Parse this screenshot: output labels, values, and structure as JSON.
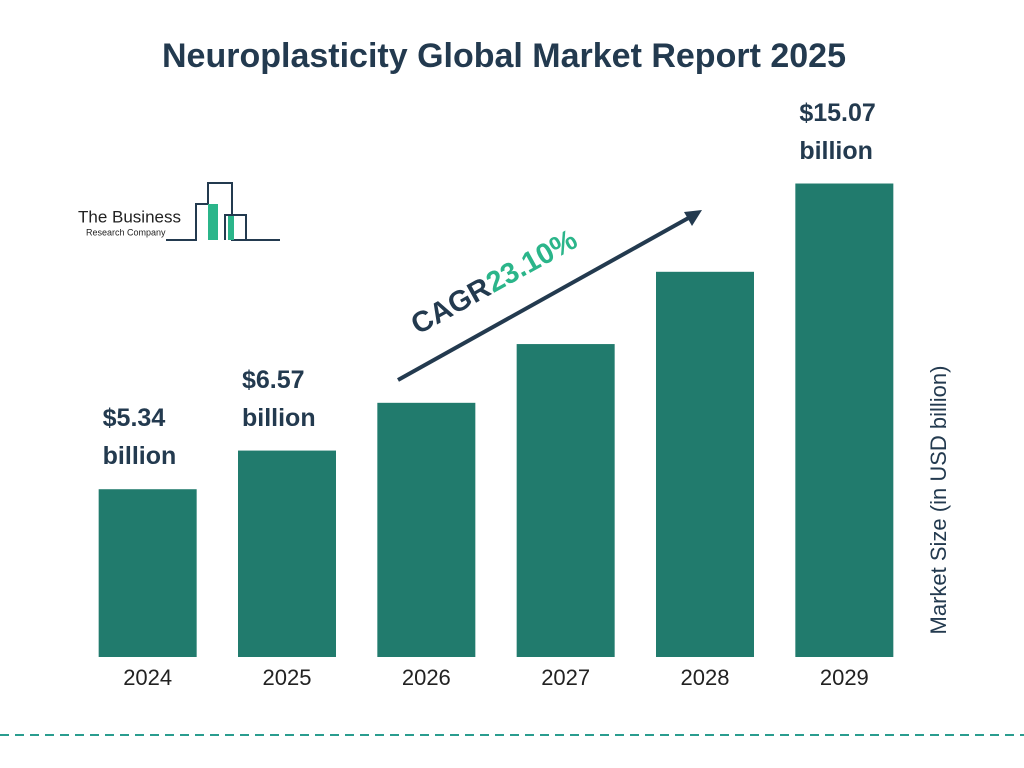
{
  "chart_data": {
    "type": "bar",
    "title": "Neuroplasticity Global Market Report 2025",
    "categories": [
      "2024",
      "2025",
      "2026",
      "2027",
      "2028",
      "2029"
    ],
    "values": [
      5.34,
      6.57,
      8.09,
      9.96,
      12.26,
      15.07
    ],
    "value_labels": [
      "$5.34 billion",
      "$6.57 billion",
      null,
      null,
      null,
      "$15.07 billion"
    ],
    "color": "#217b6d",
    "ylim": [
      0,
      15.5
    ],
    "y_label": "Market Size (in USD billion)",
    "annotation": {
      "label": "CAGR",
      "value": "23.10%"
    },
    "logo": {
      "line1": "The Business",
      "line2": "Research Company"
    }
  }
}
